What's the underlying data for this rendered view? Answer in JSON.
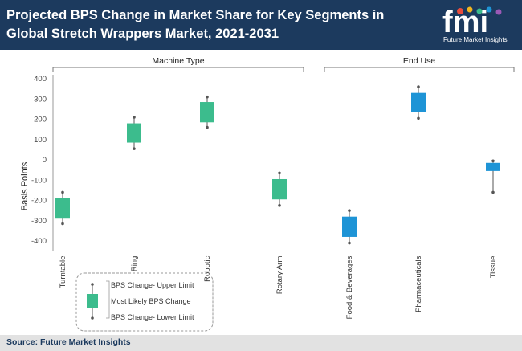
{
  "header": {
    "title": "Projected BPS Change in Market Share for Key Segments in Global Stretch Wrappers Market, 2021-2031",
    "logo_text": "fmi",
    "logo_subtext": "Future Market Insights"
  },
  "footer": {
    "source": "Source: Future Market Insights"
  },
  "legend": {
    "upper": "BPS Change- Upper Limit",
    "likely": "Most Likely BPS Change",
    "lower": "BPS Change- Lower Limit"
  },
  "chart_data": {
    "type": "box",
    "title": "Projected BPS Change in Market Share for Key Segments in Global Stretch Wrappers Market, 2021-2031",
    "ylabel": "Basis Points",
    "xlabel": "",
    "ylim": [
      -450,
      420
    ],
    "yticks": [
      400,
      300,
      200,
      100,
      0,
      -100,
      -200,
      -300,
      -400
    ],
    "groups": [
      {
        "name": "Machine Type",
        "categories": [
          "Turntable",
          "Ring",
          "Robotic",
          "Rotary Arm"
        ]
      },
      {
        "name": "End Use",
        "categories": [
          "Food & Beverages",
          "Pharmaceuticals",
          "Tissue"
        ]
      }
    ],
    "categories": [
      "Turntable",
      "Ring",
      "Robotic",
      "Rotary Arm",
      "Food & Beverages",
      "Pharmaceuticals",
      "Tissue"
    ],
    "upper_limit": [
      -160,
      210,
      310,
      -65,
      -250,
      360,
      -5
    ],
    "box_high": [
      -190,
      180,
      285,
      -95,
      -280,
      330,
      -15
    ],
    "box_low": [
      -290,
      85,
      185,
      -195,
      -380,
      235,
      -55
    ],
    "lower_limit": [
      -315,
      55,
      160,
      -225,
      -410,
      205,
      -160
    ],
    "colors": {
      "Turntable": "#3cbc8d",
      "Ring": "#3cbc8d",
      "Robotic": "#3cbc8d",
      "Rotary Arm": "#3cbc8d",
      "Food & Beverages": "#1e94d6",
      "Pharmaceuticals": "#1e94d6",
      "Tissue": "#1e94d6"
    },
    "grid": false,
    "legend_position": "bottom-left"
  },
  "colors": {
    "header_bg": "#1c3a5e",
    "machine_type": "#3cbc8d",
    "end_use": "#1e94d6"
  }
}
